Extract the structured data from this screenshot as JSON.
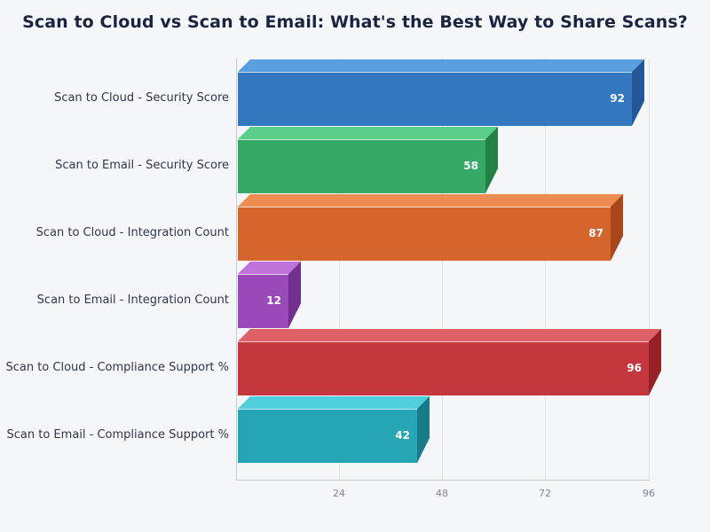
{
  "chart_data": {
    "type": "bar",
    "orientation": "horizontal",
    "style": "3d",
    "title": "Scan to Cloud vs Scan to Email: What's the Best Way to Share Scans?",
    "xlabel": "",
    "ylabel": "",
    "xlim": [
      0,
      96
    ],
    "x_ticks": [
      24,
      48,
      72,
      96
    ],
    "grid": true,
    "legend": null,
    "categories": [
      "Scan to Cloud - Security Score",
      "Scan to Email - Security Score",
      "Scan to Cloud - Integration Count",
      "Scan to Email - Integration Count",
      "Scan to Cloud - Compliance Support %",
      "Scan to Email - Compliance Support %"
    ],
    "values": [
      92,
      58,
      87,
      12,
      96,
      42
    ],
    "colors": [
      "#3478c0",
      "#36a966",
      "#d4652d",
      "#9a4ab8",
      "#c4373e",
      "#26a5b5"
    ]
  },
  "title": "Scan to Cloud vs Scan to Email: What's the Best Way to Share Scans?",
  "axis": {
    "ticks": [
      "24",
      "48",
      "72",
      "96"
    ]
  },
  "bars": [
    {
      "label": "Scan to Cloud - Security Score",
      "value": "92",
      "front": "#3478c0",
      "top": "#5a9fdf",
      "side": "#22589a"
    },
    {
      "label": "Scan to Email - Security Score",
      "value": "58",
      "front": "#36a966",
      "top": "#5bcf8a",
      "side": "#218143"
    },
    {
      "label": "Scan to Cloud - Integration Count",
      "value": "87",
      "front": "#d4652d",
      "top": "#ee8c51",
      "side": "#a9461a"
    },
    {
      "label": "Scan to Email - Integration Count",
      "value": "12",
      "front": "#9a4ab8",
      "top": "#bf72d9",
      "side": "#722f8f"
    },
    {
      "label": "Scan to Cloud - Compliance Support %",
      "value": "96",
      "front": "#c4373e",
      "top": "#e06067",
      "side": "#981f25"
    },
    {
      "label": "Scan to Email - Compliance Support %",
      "value": "42",
      "front": "#26a5b5",
      "top": "#50cedb",
      "side": "#177c88"
    }
  ]
}
